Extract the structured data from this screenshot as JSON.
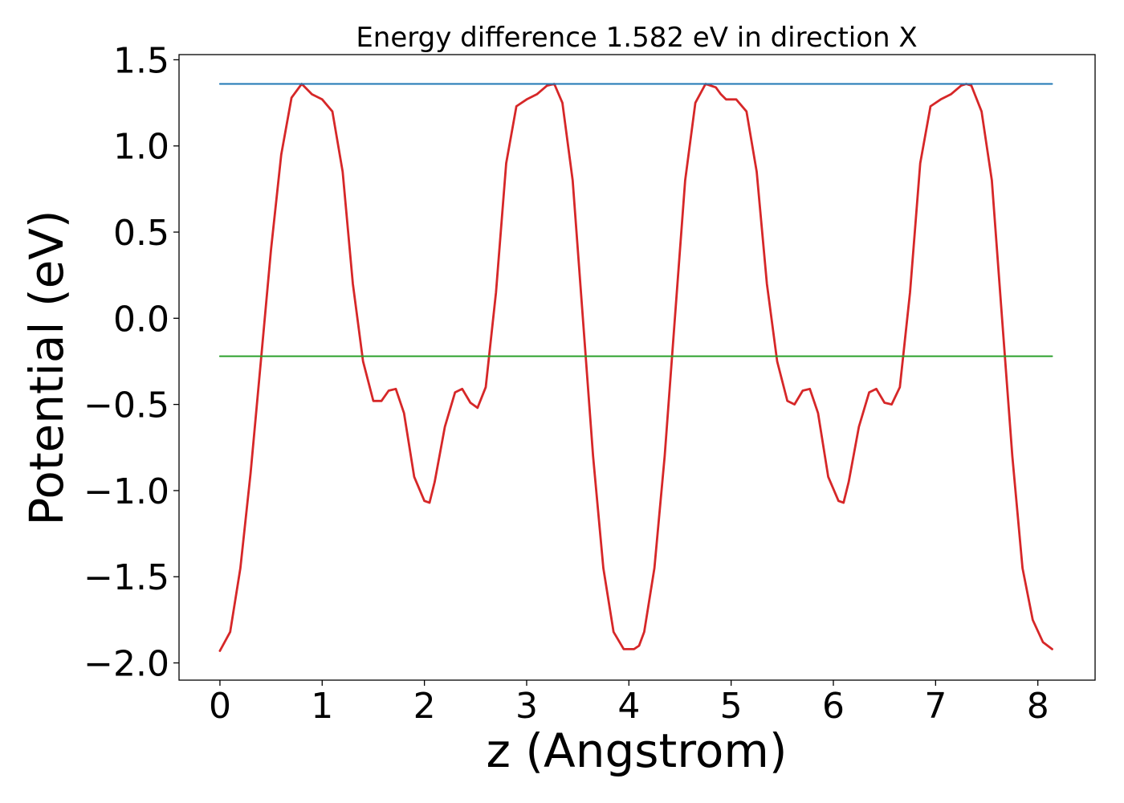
{
  "chart_data": {
    "type": "line",
    "title": "Energy difference 1.582 eV in direction X",
    "xlabel": "z (Angstrom)",
    "ylabel": "Potential (eV)",
    "xlim": [
      -0.4,
      8.56
    ],
    "ylim": [
      -2.1,
      1.53
    ],
    "xticks": [
      0,
      1,
      2,
      3,
      4,
      5,
      6,
      7,
      8
    ],
    "yticks": [
      1.5,
      1.0,
      0.5,
      0.0,
      -0.5,
      -1.0,
      -1.5,
      -2.0
    ],
    "xtick_labels": [
      "0",
      "1",
      "2",
      "3",
      "4",
      "5",
      "6",
      "7",
      "8"
    ],
    "ytick_labels": [
      "1.5",
      "1.0",
      "0.5",
      "0.0",
      "−0.5",
      "−1.0",
      "−1.5",
      "−2.0"
    ],
    "grid": false,
    "series": [
      {
        "color": "#d62728",
        "x": [
          0.0,
          0.1,
          0.2,
          0.3,
          0.4,
          0.5,
          0.6,
          0.7,
          0.8,
          0.9,
          1.0,
          1.1,
          1.2,
          1.3,
          1.4,
          1.5,
          1.58,
          1.65,
          1.72,
          1.8,
          1.9,
          2.0,
          2.05,
          2.1,
          2.2,
          2.3,
          2.37,
          2.45,
          2.52,
          2.6,
          2.7,
          2.8,
          2.9,
          3.0,
          3.1,
          3.2,
          3.27,
          3.35,
          3.45,
          3.55,
          3.65,
          3.75,
          3.85,
          3.95,
          4.05,
          4.1,
          4.15,
          4.25,
          4.35,
          4.45,
          4.55,
          4.65,
          4.75,
          4.85,
          4.9,
          4.95,
          5.05,
          5.15,
          5.25,
          5.35,
          5.45,
          5.55,
          5.62,
          5.7,
          5.77,
          5.85,
          5.95,
          6.05,
          6.1,
          6.15,
          6.25,
          6.35,
          6.42,
          6.5,
          6.57,
          6.65,
          6.75,
          6.85,
          6.95,
          7.05,
          7.15,
          7.25,
          7.3,
          7.35,
          7.45,
          7.55,
          7.65,
          7.75,
          7.85,
          7.95,
          8.05,
          8.14
        ],
        "y": [
          -1.93,
          -1.82,
          -1.45,
          -0.9,
          -0.25,
          0.4,
          0.95,
          1.28,
          1.36,
          1.3,
          1.27,
          1.2,
          0.85,
          0.2,
          -0.25,
          -0.48,
          -0.48,
          -0.42,
          -0.41,
          -0.55,
          -0.92,
          -1.06,
          -1.07,
          -0.95,
          -0.63,
          -0.43,
          -0.41,
          -0.49,
          -0.52,
          -0.4,
          0.15,
          0.9,
          1.23,
          1.27,
          1.3,
          1.35,
          1.36,
          1.25,
          0.8,
          0.0,
          -0.8,
          -1.45,
          -1.82,
          -1.92,
          -1.92,
          -1.9,
          -1.82,
          -1.45,
          -0.8,
          0.0,
          0.8,
          1.25,
          1.36,
          1.34,
          1.3,
          1.27,
          1.27,
          1.2,
          0.85,
          0.2,
          -0.25,
          -0.48,
          -0.5,
          -0.42,
          -0.41,
          -0.55,
          -0.92,
          -1.06,
          -1.07,
          -0.95,
          -0.63,
          -0.43,
          -0.41,
          -0.49,
          -0.5,
          -0.4,
          0.15,
          0.9,
          1.23,
          1.27,
          1.3,
          1.35,
          1.36,
          1.35,
          1.2,
          0.8,
          0.0,
          -0.8,
          -1.45,
          -1.75,
          -1.88,
          -1.92
        ]
      },
      {
        "color": "#1f77b4",
        "x": [
          0.0,
          8.14
        ],
        "y": [
          1.36,
          1.36
        ]
      },
      {
        "color": "#2ca02c",
        "x": [
          0.0,
          8.14
        ],
        "y": [
          -0.22,
          -0.22
        ]
      }
    ]
  }
}
